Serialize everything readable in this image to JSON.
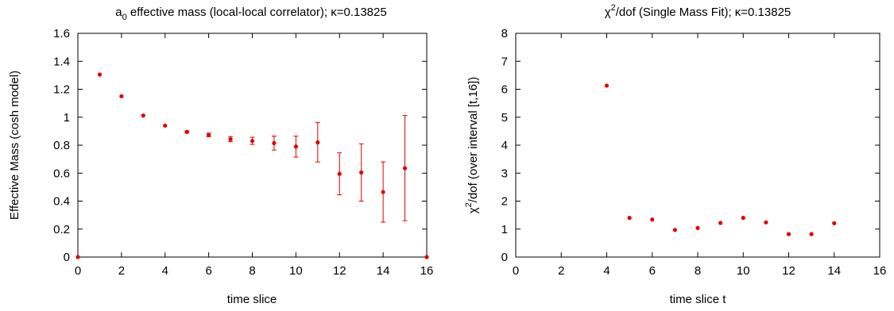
{
  "chart_data": [
    {
      "type": "scatter",
      "title": "a₀ effective mass (local-local correlator); κ=0.13825",
      "title_parts": {
        "base": "a",
        "sub": "0",
        "rest": " effective mass (local-local correlator); κ=0.13825"
      },
      "xlabel": "time slice",
      "ylabel": "Effective Mass (cosh model)",
      "xlim": [
        0,
        16
      ],
      "ylim": [
        0,
        1.6
      ],
      "xticks": [
        0,
        2,
        4,
        6,
        8,
        10,
        12,
        14,
        16
      ],
      "yticks": [
        0,
        0.2,
        0.4,
        0.6,
        0.8,
        1,
        1.2,
        1.4,
        1.6
      ],
      "ytick_labels": [
        "0",
        "0.2",
        "0.4",
        "0.6",
        "0.8",
        "1",
        "1.2",
        "1.4",
        "1.6"
      ],
      "grid": false,
      "marker_color": "#e00000",
      "series": [
        {
          "x": [
            0,
            1,
            2,
            3,
            4,
            5,
            6,
            7,
            8,
            9,
            10,
            11,
            12,
            13,
            14,
            15,
            16
          ],
          "y": [
            0,
            1.305,
            1.15,
            1.012,
            0.94,
            0.895,
            0.873,
            0.843,
            0.83,
            0.815,
            0.79,
            0.82,
            0.595,
            0.605,
            0.465,
            0.635,
            0
          ],
          "y_low": [
            0,
            1.305,
            1.15,
            1.012,
            0.94,
            0.888,
            0.86,
            0.825,
            0.805,
            0.765,
            0.715,
            0.68,
            0.445,
            0.4,
            0.25,
            0.26,
            0
          ],
          "y_high": [
            0,
            1.305,
            1.15,
            1.012,
            0.94,
            0.902,
            0.886,
            0.862,
            0.857,
            0.865,
            0.865,
            0.962,
            0.745,
            0.81,
            0.68,
            1.012,
            0
          ]
        }
      ]
    },
    {
      "type": "scatter",
      "title": "χ²/dof (Single Mass Fit); κ=0.13825",
      "title_parts": {
        "base": "χ",
        "sup": "2",
        "rest": "/dof (Single Mass Fit); κ=0.13825"
      },
      "xlabel": "time slice t",
      "ylabel": "χ²/dof (over interval [t,16])",
      "ylabel_parts": {
        "base": "χ",
        "sup": "2",
        "rest": "/dof (over interval [t,16])"
      },
      "xlim": [
        0,
        16
      ],
      "ylim": [
        0,
        8
      ],
      "xticks": [
        0,
        2,
        4,
        6,
        8,
        10,
        12,
        14,
        16
      ],
      "yticks": [
        0,
        1,
        2,
        3,
        4,
        5,
        6,
        7,
        8
      ],
      "ytick_labels": [
        "0",
        "1",
        "2",
        "3",
        "4",
        "5",
        "6",
        "7",
        "8"
      ],
      "grid": false,
      "marker_color": "#e00000",
      "series": [
        {
          "x": [
            4,
            5,
            6,
            7,
            8,
            9,
            10,
            11,
            12,
            13,
            14
          ],
          "y": [
            6.13,
            1.4,
            1.34,
            0.97,
            1.04,
            1.22,
            1.4,
            1.24,
            0.82,
            0.82,
            1.21
          ]
        }
      ]
    }
  ]
}
